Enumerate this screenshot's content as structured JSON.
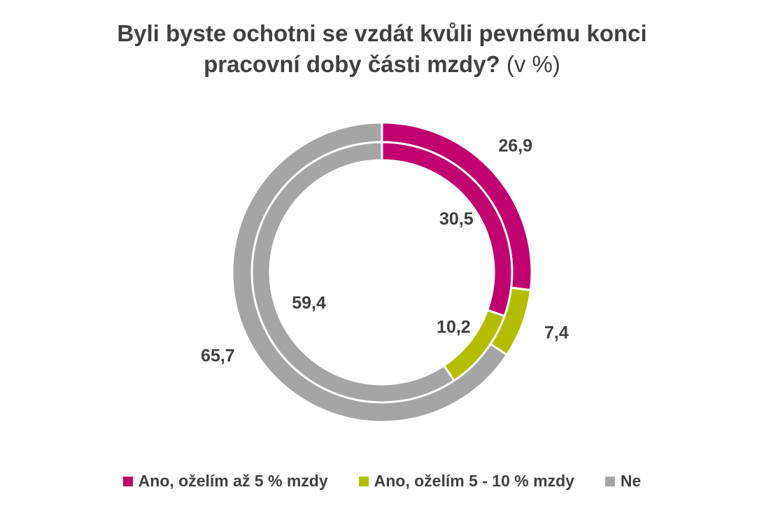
{
  "chart_data": {
    "type": "pie",
    "variant": "nested-donut",
    "title": "Byli byste ochotni se vzdát kvůli pevnému konci pracovní doby části mzdy?",
    "title_unit": "(v %)",
    "categories": [
      "Ano, oželím až 5 % mzdy",
      "Ano, oželím 5 - 10 % mzdy",
      "Ne"
    ],
    "colors": [
      "#c0006f",
      "#b5bd00",
      "#a5a5a5"
    ],
    "series": [
      {
        "ring": "inner",
        "values": [
          30.5,
          10.2,
          59.4
        ],
        "labels": [
          "30,5",
          "10,2",
          "59,4"
        ]
      },
      {
        "ring": "outer",
        "values": [
          26.9,
          7.4,
          65.7
        ],
        "labels": [
          "26,9",
          "7,4",
          "65,7"
        ]
      }
    ],
    "legend_position": "bottom"
  }
}
